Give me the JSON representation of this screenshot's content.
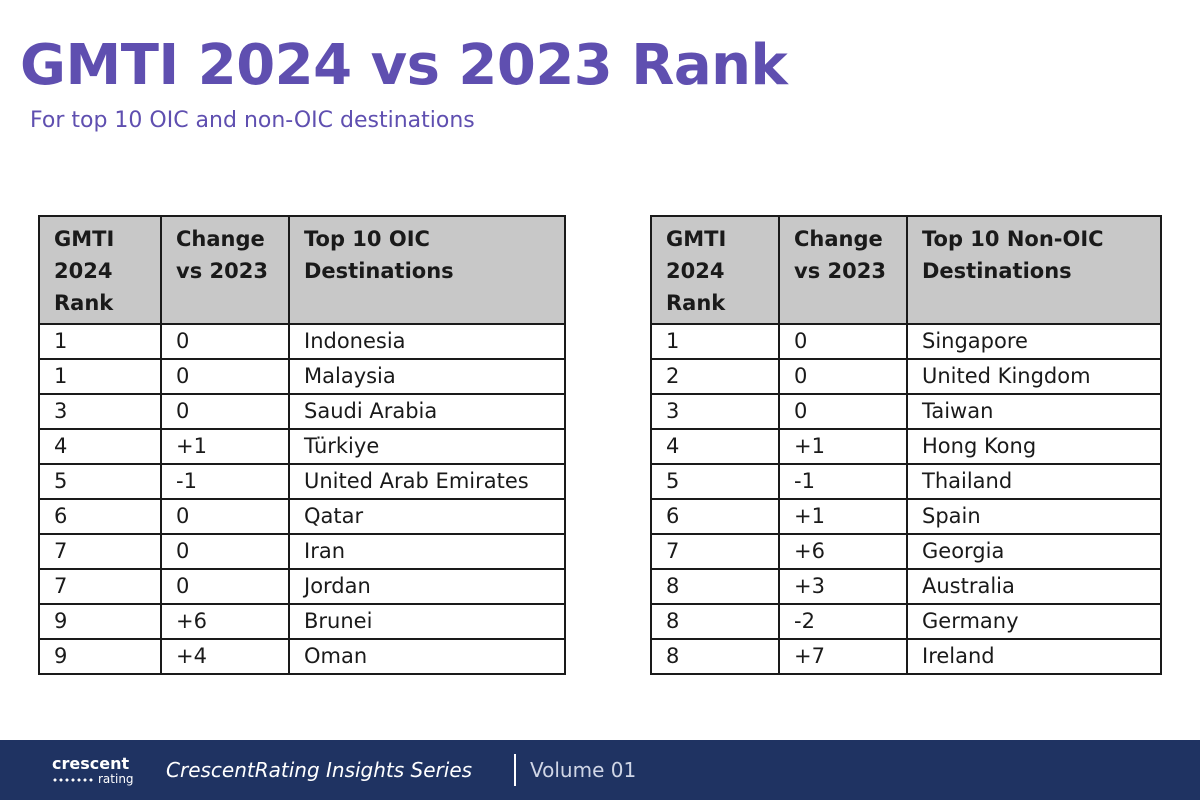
{
  "title": "GMTI 2024 vs 2023 Rank",
  "subtitle": "For top 10 OIC and non-OIC destinations",
  "oic_table": {
    "headers": [
      "GMTI 2024 Rank",
      "Change vs 2023",
      "Top 10 OIC Destinations"
    ],
    "rows": [
      [
        "1",
        "0",
        "Indonesia"
      ],
      [
        "1",
        "0",
        "Malaysia"
      ],
      [
        "3",
        "0",
        "Saudi Arabia"
      ],
      [
        "4",
        "+1",
        "Türkiye"
      ],
      [
        "5",
        "-1",
        "United Arab Emirates"
      ],
      [
        "6",
        "0",
        "Qatar"
      ],
      [
        "7",
        "0",
        "Iran"
      ],
      [
        "7",
        "0",
        "Jordan"
      ],
      [
        "9",
        "+6",
        "Brunei"
      ],
      [
        "9",
        "+4",
        "Oman"
      ]
    ]
  },
  "non_oic_table": {
    "headers": [
      "GMTI 2024 Rank",
      "Change vs 2023",
      "Top 10 Non-OIC Destinations"
    ],
    "rows": [
      [
        "1",
        "0",
        "Singapore"
      ],
      [
        "2",
        "0",
        "United Kingdom"
      ],
      [
        "3",
        "0",
        "Taiwan"
      ],
      [
        "4",
        "+1",
        "Hong Kong"
      ],
      [
        "5",
        "-1",
        "Thailand"
      ],
      [
        "6",
        "+1",
        "Spain"
      ],
      [
        "7",
        "+6",
        "Georgia"
      ],
      [
        "8",
        "+3",
        "Australia"
      ],
      [
        "8",
        "-2",
        "Germany"
      ],
      [
        "8",
        "+7",
        "Ireland"
      ]
    ]
  },
  "footer": {
    "logo_top": "crescent",
    "logo_bottom": "rating",
    "series": "CrescentRating Insights Series",
    "volume": "Volume 01"
  },
  "colors": {
    "title": "#5f4fb0",
    "header_bg": "#c8c8c8",
    "footer_bg": "#1f3362"
  }
}
